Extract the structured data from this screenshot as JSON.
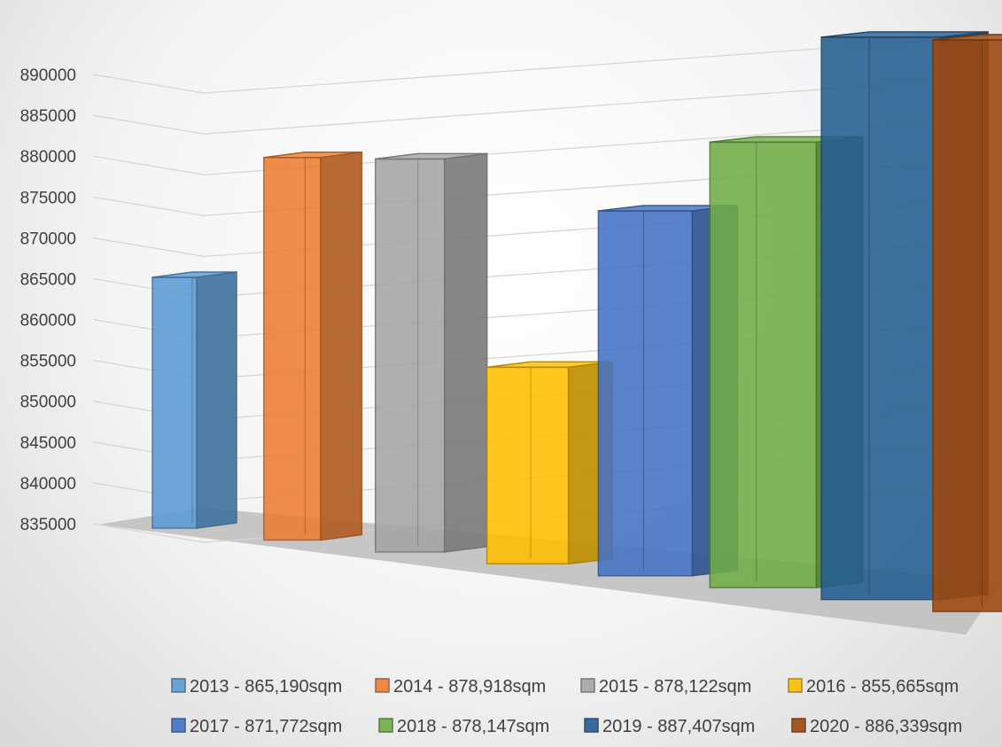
{
  "chart_data": {
    "type": "bar",
    "title": "",
    "xlabel": "",
    "ylabel": "",
    "ylim": [
      835000,
      890000
    ],
    "yticks": [
      835000,
      840000,
      845000,
      850000,
      855000,
      860000,
      865000,
      870000,
      875000,
      880000,
      885000,
      890000
    ],
    "grid": true,
    "legend_position": "bottom",
    "series": [
      {
        "name": "2013 - 865,190sqm",
        "value": 865190,
        "color": "#5b9bd5"
      },
      {
        "name": "2014 - 878,918sqm",
        "value": 878918,
        "color": "#ed7d31"
      },
      {
        "name": "2015 - 878,122sqm",
        "value": 878122,
        "color": "#a5a5a5"
      },
      {
        "name": "2016 - 855,665sqm",
        "value": 855665,
        "color": "#ffc000"
      },
      {
        "name": "2017 - 871,772sqm",
        "value": 871772,
        "color": "#4472c4"
      },
      {
        "name": "2018 - 878,147sqm",
        "value": 878147,
        "color": "#70ad47"
      },
      {
        "name": "2019 - 887,407sqm",
        "value": 887407,
        "color": "#255e91"
      },
      {
        "name": "2020 - 886,339sqm",
        "value": 886339,
        "color": "#9e480e"
      }
    ]
  }
}
